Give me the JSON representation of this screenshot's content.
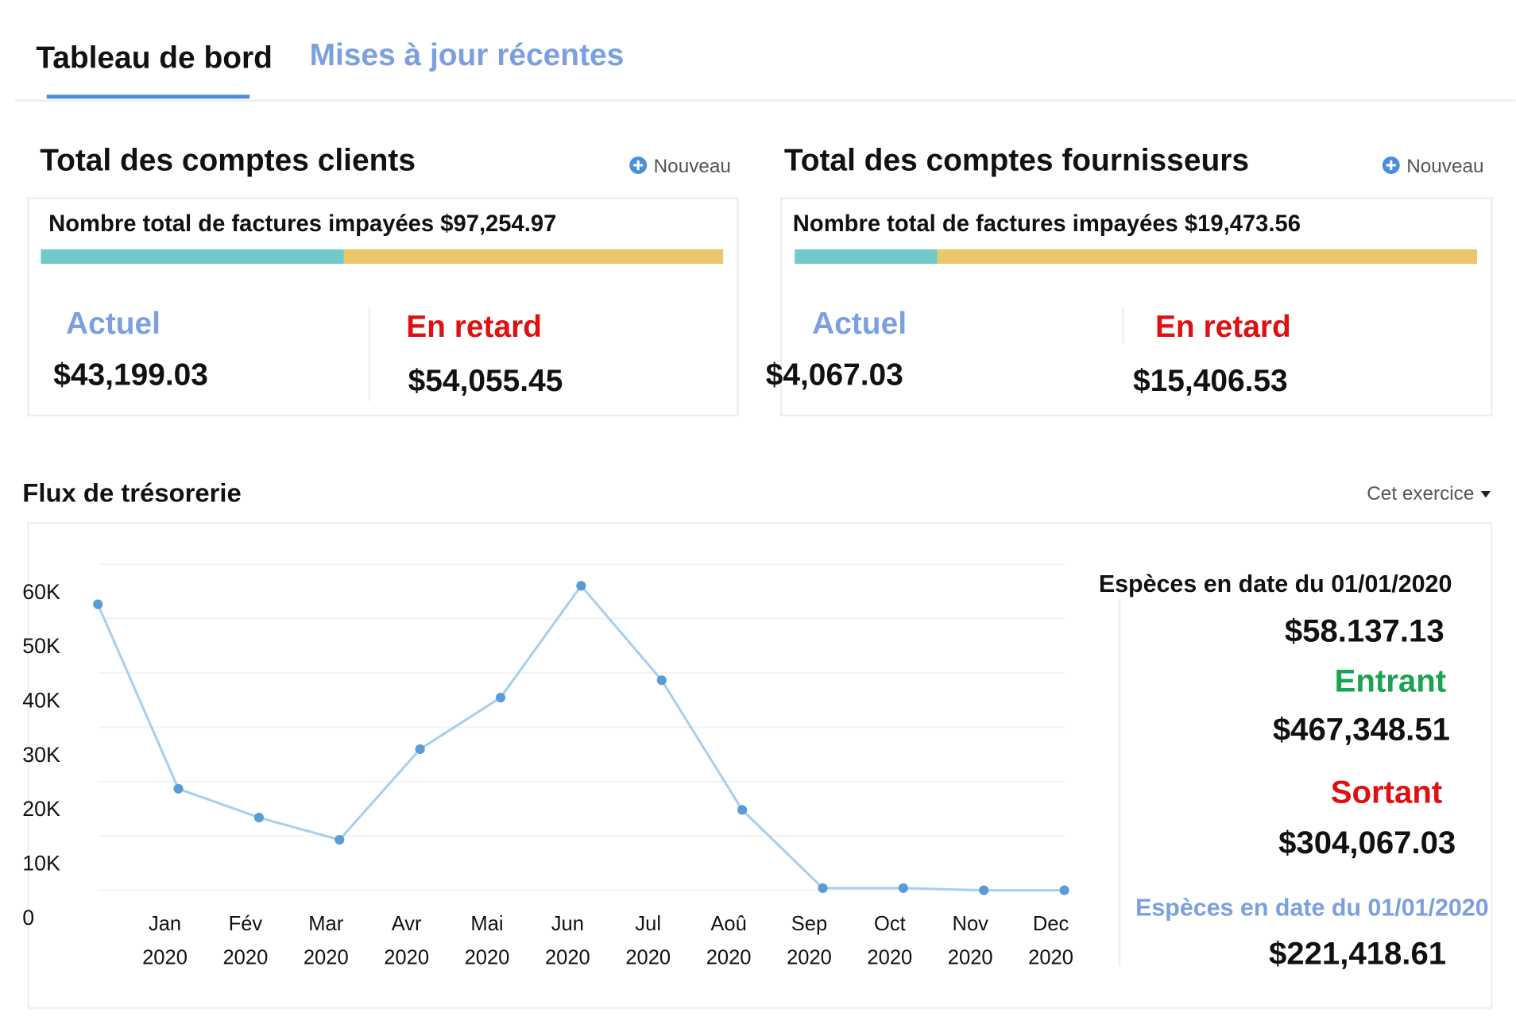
{
  "tabs": [
    {
      "label": "Tableau de bord",
      "active": true
    },
    {
      "label": "Mises à jour récentes",
      "active": false
    }
  ],
  "cards": [
    {
      "title": "Total des comptes clients",
      "action": "Nouveau",
      "total_label": "Nombre total de factures impayées $97,254.97",
      "current": {
        "label": "Actuel",
        "value": 43199.03,
        "value_label": "$43,199.03",
        "color": "#72c9c9"
      },
      "overdue": {
        "label": "En retard",
        "value": 54055.45,
        "value_label": "$54,055.45",
        "color": "#e8c86a"
      }
    },
    {
      "title": "Total des comptes fournisseurs",
      "action": "Nouveau",
      "total_label": "Nombre total de factures impayées $19,473.56",
      "current": {
        "label": "Actuel",
        "value": 4067.03,
        "value_label": "$4,067.03",
        "color": "#72c9c9"
      },
      "overdue": {
        "label": "En retard",
        "value": 15406.53,
        "value_label": "$15,406.53",
        "color": "#e8c86a"
      }
    }
  ],
  "cash_flow": {
    "title": "Flux de trésorerie",
    "period": "Cet exercice",
    "summary": [
      {
        "text": "Espèces en date du 01/01/2020",
        "color": "#111111"
      },
      {
        "text": "$58.137.13",
        "color": "#111111"
      },
      {
        "text": "Entrant",
        "color": "#1aa350"
      },
      {
        "text": "$467,348.51",
        "color": "#111111"
      },
      {
        "text": "Sortant",
        "color": "#e01010"
      },
      {
        "text": "$304,067.03",
        "color": "#111111"
      },
      {
        "text": "Espèces en date du 01/01/2020",
        "color": "#7b9fe0"
      },
      {
        "text": "$221,418.61",
        "color": "#111111"
      }
    ]
  },
  "chart_data": {
    "type": "line",
    "categories": [
      null,
      "Jan 2020",
      "Fév 2020",
      "Mar 2020",
      "Avr 2020",
      "Mai 2020",
      "Jun 2020",
      "Jul 2020",
      "Aoû 2020",
      "Sep 2020",
      "Oct 2020",
      "Nov 2020",
      "Dec 2020"
    ],
    "values": [
      58000,
      24000,
      18700,
      14600,
      31300,
      40800,
      61400,
      44000,
      20100,
      5700,
      5700,
      5300,
      5300
    ],
    "color": "#a8cff0",
    "point_color": "#5b9bd5",
    "ylim": [
      0,
      63000
    ],
    "yticks": [
      0,
      {
        "value": 10000,
        "label": "10K"
      },
      {
        "value": 20000,
        "label": "20K"
      },
      {
        "value": 30000,
        "label": "30K"
      },
      {
        "value": 40000,
        "label": "40K"
      },
      {
        "value": 50000,
        "label": "50K"
      },
      {
        "value": 60000,
        "label": "60K"
      }
    ],
    "grid": true
  }
}
